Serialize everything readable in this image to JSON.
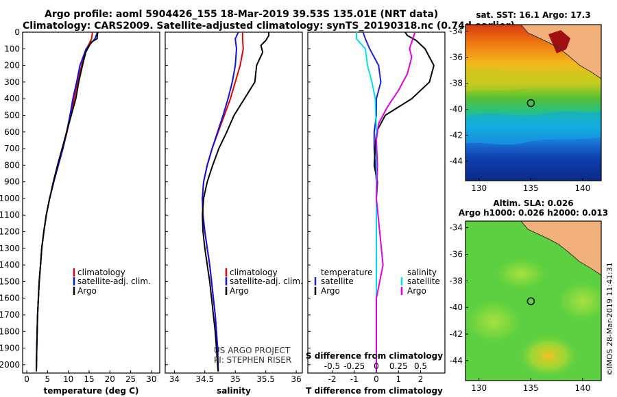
{
  "header": {
    "line1": "Argo profile: aoml 5904426_155 18-Mar-2019 39.53S 135.01E (NRT data)",
    "line2": "Climatology: CARS2009. Satellite-adjusted climatology: synTS_20190318.nc (0.74d earlier)"
  },
  "colors": {
    "climatology": "#e00000",
    "satellite": "#1010e0",
    "argo": "#000000",
    "t_sat": "#2020d0",
    "s_sat": "#00e0f0",
    "s_argo": "#e000e0"
  },
  "chart_data": [
    {
      "type": "line",
      "name": "temperature",
      "xlabel": "temperature (deg C)",
      "ylabel": "",
      "xlim": [
        -1,
        32
      ],
      "ylim": [
        2050,
        0
      ],
      "xticks": [
        0,
        5,
        10,
        15,
        20,
        25,
        30
      ],
      "yticks": [
        0,
        100,
        200,
        300,
        400,
        500,
        600,
        700,
        800,
        900,
        1000,
        1100,
        1200,
        1300,
        1400,
        1500,
        1600,
        1700,
        1800,
        1900,
        2000
      ],
      "legend": [
        "climatology",
        "satellite-adj. clim.",
        "Argo"
      ],
      "series": [
        {
          "name": "climatology",
          "color_key": "climatology",
          "x": [
            15.8,
            15.6,
            14.4,
            13.2,
            12.2,
            11.4,
            10.6,
            9.7,
            8.7,
            7.6,
            6.5,
            5.5,
            4.7,
            4.1,
            3.6,
            3.3,
            3.0,
            2.8,
            2.6,
            2.5,
            2.4,
            2.3
          ],
          "y": [
            0,
            40,
            100,
            200,
            300,
            400,
            500,
            600,
            700,
            800,
            900,
            1000,
            1100,
            1200,
            1300,
            1400,
            1500,
            1600,
            1700,
            1800,
            1900,
            2040
          ]
        },
        {
          "name": "satellite-adj. clim.",
          "color_key": "satellite",
          "x": [
            17.0,
            16.4,
            14.3,
            12.8,
            12.0,
            11.1,
            10.4,
            9.6,
            8.7,
            7.6,
            6.5,
            5.5,
            4.7,
            4.1,
            3.6,
            3.3,
            3.0,
            2.8,
            2.6,
            2.5,
            2.4,
            2.3
          ],
          "y": [
            0,
            40,
            100,
            200,
            300,
            400,
            500,
            600,
            700,
            800,
            900,
            1000,
            1100,
            1200,
            1300,
            1400,
            1500,
            1600,
            1700,
            1800,
            1900,
            2040
          ]
        },
        {
          "name": "Argo",
          "color_key": "argo",
          "x": [
            17.1,
            17.0,
            16.9,
            15.5,
            14.2,
            13.4,
            12.5,
            11.8,
            10.7,
            9.6,
            8.5,
            7.4,
            6.4,
            5.5,
            4.7,
            4.1,
            3.6,
            3.3,
            3.0,
            2.8,
            2.6,
            2.5,
            2.4,
            2.3
          ],
          "y": [
            0,
            15,
            40,
            60,
            120,
            200,
            300,
            400,
            500,
            600,
            700,
            800,
            900,
            1000,
            1100,
            1200,
            1300,
            1400,
            1500,
            1600,
            1700,
            1800,
            1900,
            2040
          ]
        }
      ]
    },
    {
      "type": "line",
      "name": "salinity",
      "xlabel": "salinity",
      "xlim": [
        33.85,
        36.1
      ],
      "ylim": [
        2050,
        0
      ],
      "xticks": [
        34,
        34.5,
        35,
        35.5,
        36
      ],
      "xtick_labels": [
        "34",
        "34.5",
        "35",
        "35.5",
        "36"
      ],
      "legend": [
        "climatology",
        "satellite-adj. clim.",
        "Argo"
      ],
      "annotation": [
        "US ARGO PROJECT",
        "PI: STEPHEN RISER"
      ],
      "series": [
        {
          "name": "climatology",
          "color_key": "climatology",
          "x": [
            35.12,
            35.12,
            35.13,
            35.08,
            35.0,
            34.92,
            34.82,
            34.72,
            34.62,
            34.54,
            34.48,
            34.46,
            34.47,
            34.5,
            34.54,
            34.58,
            34.61,
            34.64,
            34.67,
            34.69,
            34.71,
            34.72
          ],
          "y": [
            0,
            40,
            100,
            200,
            300,
            400,
            500,
            600,
            700,
            800,
            900,
            1000,
            1100,
            1200,
            1300,
            1400,
            1500,
            1600,
            1700,
            1800,
            1900,
            2040
          ]
        },
        {
          "name": "satellite-adj. clim.",
          "color_key": "satellite",
          "x": [
            35.05,
            35.0,
            35.02,
            35.0,
            34.95,
            34.88,
            34.8,
            34.71,
            34.62,
            34.54,
            34.48,
            34.46,
            34.47,
            34.5,
            34.54,
            34.58,
            34.61,
            34.64,
            34.67,
            34.69,
            34.71,
            34.72
          ],
          "y": [
            0,
            40,
            100,
            200,
            300,
            400,
            500,
            600,
            700,
            800,
            900,
            1000,
            1100,
            1200,
            1300,
            1400,
            1500,
            1600,
            1700,
            1800,
            1900,
            2040
          ]
        },
        {
          "name": "Argo",
          "color_key": "argo",
          "x": [
            35.55,
            35.55,
            35.5,
            35.42,
            35.45,
            35.35,
            35.32,
            35.15,
            34.98,
            34.86,
            34.73,
            34.63,
            34.54,
            34.48,
            34.46,
            34.47,
            34.5,
            34.54,
            34.58,
            34.61,
            34.64,
            34.67,
            34.69,
            34.71,
            34.72
          ],
          "y": [
            0,
            20,
            50,
            80,
            120,
            200,
            300,
            400,
            500,
            600,
            700,
            800,
            900,
            1000,
            1100,
            1200,
            1300,
            1400,
            1500,
            1600,
            1700,
            1800,
            1900,
            2000,
            2040
          ]
        }
      ]
    },
    {
      "type": "line",
      "name": "difference",
      "xlabel": "T difference from climatology",
      "xlabel2": "S difference from climatology",
      "xlim": [
        -3.1,
        3.1
      ],
      "ylim": [
        2050,
        0
      ],
      "xticks": [
        -2,
        -1,
        0,
        1,
        2
      ],
      "s_ticks": [
        -0.5,
        -0.25,
        0,
        0.25,
        0.5
      ],
      "s_tick_labels": [
        "-0.5",
        "-0.25",
        "0",
        "0.25",
        "0.5"
      ],
      "legend_t": {
        "head": "temperature",
        "items": [
          "satellite",
          "Argo"
        ]
      },
      "legend_s": {
        "head": "salinity",
        "items": [
          "satellite",
          "Argo"
        ]
      },
      "series": [
        {
          "name": "T satellite",
          "color_key": "t_sat",
          "x": [
            -0.6,
            -0.5,
            -0.3,
            0.1,
            0.2,
            0.0,
            0.0,
            -0.1,
            -0.1,
            -0.05,
            0.0,
            0.0,
            0.0,
            0.0,
            0.0
          ],
          "y": [
            0,
            40,
            100,
            200,
            300,
            400,
            500,
            600,
            700,
            800,
            900,
            1000,
            1200,
            1500,
            2040
          ]
        },
        {
          "name": "T Argo",
          "color_key": "argo",
          "x": [
            1.3,
            1.4,
            1.8,
            2.2,
            2.6,
            2.4,
            1.6,
            0.4,
            0.0,
            -0.1,
            0.05,
            0.0,
            0.0,
            0.0,
            0.0
          ],
          "y": [
            0,
            20,
            50,
            100,
            200,
            300,
            400,
            500,
            600,
            800,
            900,
            1000,
            1200,
            1500,
            2040
          ]
        },
        {
          "name": "S satellite",
          "color_key": "s_sat",
          "x": [
            -0.9,
            -0.9,
            -0.5,
            -0.4,
            -0.2,
            -0.05,
            0.0,
            0.0,
            0.0,
            0.0,
            0.0
          ],
          "y": [
            0,
            40,
            100,
            200,
            300,
            400,
            600,
            800,
            1000,
            1500,
            2040
          ]
        },
        {
          "name": "S Argo",
          "color_key": "s_argo",
          "x": [
            1.75,
            1.65,
            1.5,
            1.6,
            1.4,
            1.0,
            0.5,
            0.1,
            0.0,
            0.05,
            0.0,
            0.3,
            0.0,
            0.0
          ],
          "y": [
            0,
            40,
            100,
            150,
            250,
            350,
            450,
            550,
            650,
            800,
            1000,
            1400,
            1600,
            2040
          ]
        }
      ]
    },
    {
      "type": "heatmap",
      "name": "sst_map",
      "title": "sat. SST: 16.1 Argo: 17.3",
      "xlim": [
        128.7,
        141.8
      ],
      "ylim": [
        -45.5,
        -33.5
      ],
      "xticks": [
        130,
        135,
        140
      ],
      "yticks": [
        -34,
        -36,
        -38,
        -40,
        -42,
        -44
      ],
      "marker": {
        "lon": 135.01,
        "lat": -39.53
      }
    },
    {
      "type": "heatmap",
      "name": "sla_map",
      "title": "Altim. SLA: 0.026",
      "subtitle": "Argo h1000: 0.026 h2000: 0.013",
      "xlim": [
        128.7,
        141.8
      ],
      "ylim": [
        -45.5,
        -33.5
      ],
      "xticks": [
        130,
        135,
        140
      ],
      "yticks": [
        -34,
        -36,
        -38,
        -40,
        -42,
        -44
      ],
      "marker": {
        "lon": 135.01,
        "lat": -39.53
      }
    }
  ],
  "watermark": "©IMOS 28-Mar-2019 11:41:31"
}
